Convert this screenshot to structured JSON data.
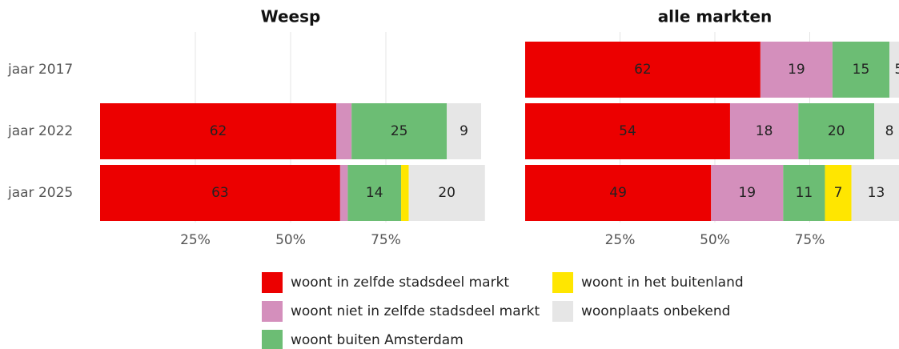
{
  "chart_data": [
    {
      "type": "bar",
      "orientation": "horizontal",
      "stacked": true,
      "title": "Weesp",
      "categories": [
        "jaar 2017",
        "jaar 2022",
        "jaar 2025"
      ],
      "series": [
        {
          "name": "woont in zelfde stadsdeel markt",
          "color": "#ec0000",
          "values": [
            null,
            62,
            63
          ]
        },
        {
          "name": "woont niet in zelfde stadsdeel markt",
          "color": "#d48fbc",
          "values": [
            null,
            4,
            2
          ]
        },
        {
          "name": "woont buiten Amsterdam",
          "color": "#6cbd74",
          "values": [
            null,
            25,
            14
          ]
        },
        {
          "name": "woont in het buitenland",
          "color": "#ffe600",
          "values": [
            null,
            0,
            2
          ]
        },
        {
          "name": "woonplaats onbekend",
          "color": "#e6e6e6",
          "values": [
            null,
            9,
            20
          ]
        }
      ],
      "xlim": [
        0,
        100
      ],
      "xticks": [
        {
          "value": 25,
          "label": "25%"
        },
        {
          "value": 50,
          "label": "50%"
        },
        {
          "value": 75,
          "label": "75%"
        }
      ],
      "grid": true
    },
    {
      "type": "bar",
      "orientation": "horizontal",
      "stacked": true,
      "title": "alle markten",
      "series": [
        {
          "values": [
            62,
            54,
            49
          ]
        },
        {
          "values": [
            19,
            18,
            19
          ]
        },
        {
          "values": [
            15,
            20,
            11
          ]
        },
        {
          "values": [
            0,
            0,
            7
          ]
        },
        {
          "values": [
            5,
            8,
            13
          ]
        }
      ],
      "xlim": [
        0,
        100
      ],
      "xticks": [
        {
          "value": 25,
          "label": "25%"
        },
        {
          "value": 50,
          "label": "50%"
        },
        {
          "value": 75,
          "label": "75%"
        }
      ],
      "grid": true
    }
  ]
}
